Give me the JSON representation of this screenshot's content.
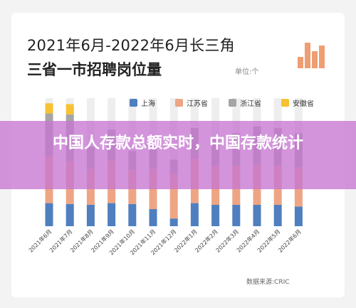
{
  "title_line1": "2021年6月-2022年6月长三角",
  "title_line2": "三省一市招聘岗位量",
  "unit_label": "单位:个",
  "banner_text": "中国人存款总额实时，中国存款统计",
  "source_label": "数据来源:CRIC",
  "colors": {
    "shanghai": "#4f7fbf",
    "jiangsu": "#eea584",
    "zhejiang": "#a5a5a5",
    "anhui": "#f6c233",
    "banner": "#c776d2",
    "logo": "#ef9e73"
  },
  "chart_data": {
    "type": "bar",
    "stacked": true,
    "categories": [
      "2021年6月",
      "2021年7月",
      "2021年8月",
      "2021年9月",
      "2021年10月",
      "2021年11月",
      "2021年12月",
      "2022年1月",
      "2022年2月",
      "2022年3月",
      "2022年4月",
      "2022年5月",
      "2022年6月"
    ],
    "series": [
      {
        "name": "上海",
        "values": [
          27,
          26,
          25,
          27,
          26,
          20,
          9,
          27,
          25,
          25,
          25,
          25,
          23
        ]
      },
      {
        "name": "江苏省",
        "values": [
          55,
          50,
          42,
          50,
          40,
          47,
          52,
          52,
          45,
          46,
          47,
          46,
          46
        ]
      },
      {
        "name": "浙江省",
        "values": [
          50,
          55,
          26,
          36,
          22,
          26,
          17,
          36,
          32,
          38,
          45,
          44,
          40
        ]
      },
      {
        "name": "安徽省",
        "values": [
          12,
          12,
          0,
          0,
          0,
          0,
          0,
          0,
          0,
          0,
          0,
          0,
          0
        ]
      }
    ],
    "ylim": [
      0,
      150
    ],
    "legend": "top-right",
    "grid": false
  }
}
